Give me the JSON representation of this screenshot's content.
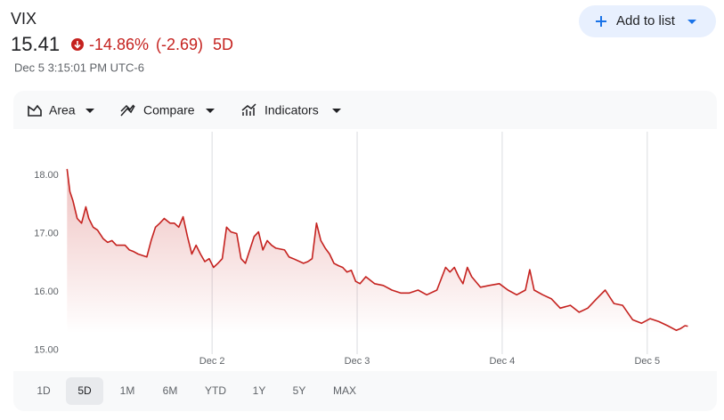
{
  "header": {
    "symbol": "VIX",
    "price": "15.41",
    "change_percent": "-14.86%",
    "change_abs": "(-2.69)",
    "period": "5D",
    "timestamp": "Dec 5 3:15:01 PM UTC-6",
    "button": "Add to list"
  },
  "toolbar": [
    "Area",
    "Compare",
    "Indicators"
  ],
  "ranges": [
    "1D",
    "5D",
    "1M",
    "6M",
    "YTD",
    "1Y",
    "5Y",
    "MAX"
  ],
  "selected_range_index": 1,
  "chart_data": {
    "type": "area",
    "color": "#c5221f",
    "x": [
      1,
      1.02,
      1.04,
      1.07,
      1.1,
      1.13,
      1.15,
      1.18,
      1.21,
      1.25,
      1.28,
      1.31,
      1.34,
      1.4,
      1.43,
      1.46,
      1.49,
      1.55,
      1.58,
      1.61,
      1.64,
      1.67,
      1.71,
      1.74,
      1.77,
      1.8,
      1.83,
      1.86,
      1.89,
      1.92,
      1.95,
      1.98,
      2.01,
      2.04,
      2.07,
      2.1,
      2.13,
      2.17,
      2.2,
      2.23,
      2.26,
      2.29,
      2.32,
      2.35,
      2.38,
      2.41,
      2.44,
      2.5,
      2.53,
      2.56,
      2.63,
      2.66,
      2.69,
      2.72,
      2.75,
      2.78,
      2.81,
      2.84,
      2.87,
      2.9,
      2.93,
      2.96,
      2.99,
      3.02,
      3.06,
      3.12,
      3.18,
      3.24,
      3.3,
      3.36,
      3.42,
      3.48,
      3.55,
      3.61,
      3.64,
      3.67,
      3.7,
      3.73,
      3.76,
      3.79,
      3.85,
      3.91,
      3.98,
      4.04,
      4.1,
      4.16,
      4.19,
      4.22,
      4.28,
      4.34,
      4.4,
      4.47,
      4.53,
      4.59,
      4.65,
      4.71,
      4.77,
      4.83,
      4.9,
      4.96,
      5.02,
      5.08,
      5.14,
      5.2,
      5.23,
      5.26,
      5.28
    ],
    "values": [
      18.11,
      17.72,
      17.57,
      17.26,
      17.18,
      17.46,
      17.26,
      17.11,
      17.06,
      16.91,
      16.85,
      16.88,
      16.8,
      16.8,
      16.72,
      16.69,
      16.65,
      16.6,
      16.88,
      17.11,
      17.18,
      17.26,
      17.18,
      17.18,
      17.11,
      17.29,
      16.95,
      16.65,
      16.8,
      16.65,
      16.52,
      16.57,
      16.42,
      16.49,
      16.57,
      17.11,
      17.03,
      17.0,
      16.57,
      16.49,
      16.72,
      16.95,
      17.03,
      16.72,
      16.88,
      16.8,
      16.75,
      16.72,
      16.6,
      16.57,
      16.49,
      16.52,
      16.57,
      17.18,
      16.88,
      16.75,
      16.65,
      16.49,
      16.45,
      16.42,
      16.34,
      16.37,
      16.18,
      16.14,
      16.26,
      16.14,
      16.11,
      16.03,
      15.98,
      15.98,
      16.03,
      15.95,
      16.03,
      16.42,
      16.34,
      16.42,
      16.26,
      16.14,
      16.42,
      16.26,
      16.08,
      16.11,
      16.14,
      16.03,
      15.95,
      16.03,
      16.38,
      16.03,
      15.95,
      15.88,
      15.72,
      15.77,
      15.65,
      15.72,
      15.88,
      16.03,
      15.8,
      15.77,
      15.52,
      15.46,
      15.54,
      15.49,
      15.42,
      15.34,
      15.37,
      15.42,
      15.41
    ],
    "xlim": [
      0.63,
      5.48
    ],
    "xticks": [
      {
        "value": 2,
        "label": "Dec 2"
      },
      {
        "value": 3,
        "label": "Dec 3"
      },
      {
        "value": 4,
        "label": "Dec 4"
      },
      {
        "value": 5,
        "label": "Dec 5"
      }
    ],
    "ylim": [
      14.9,
      18.75
    ],
    "yticks": [
      {
        "value": 15,
        "label": "15.00"
      },
      {
        "value": 16,
        "label": "16.00"
      },
      {
        "value": 17,
        "label": "17.00"
      },
      {
        "value": 18,
        "label": "18.00"
      }
    ],
    "grid": true
  }
}
